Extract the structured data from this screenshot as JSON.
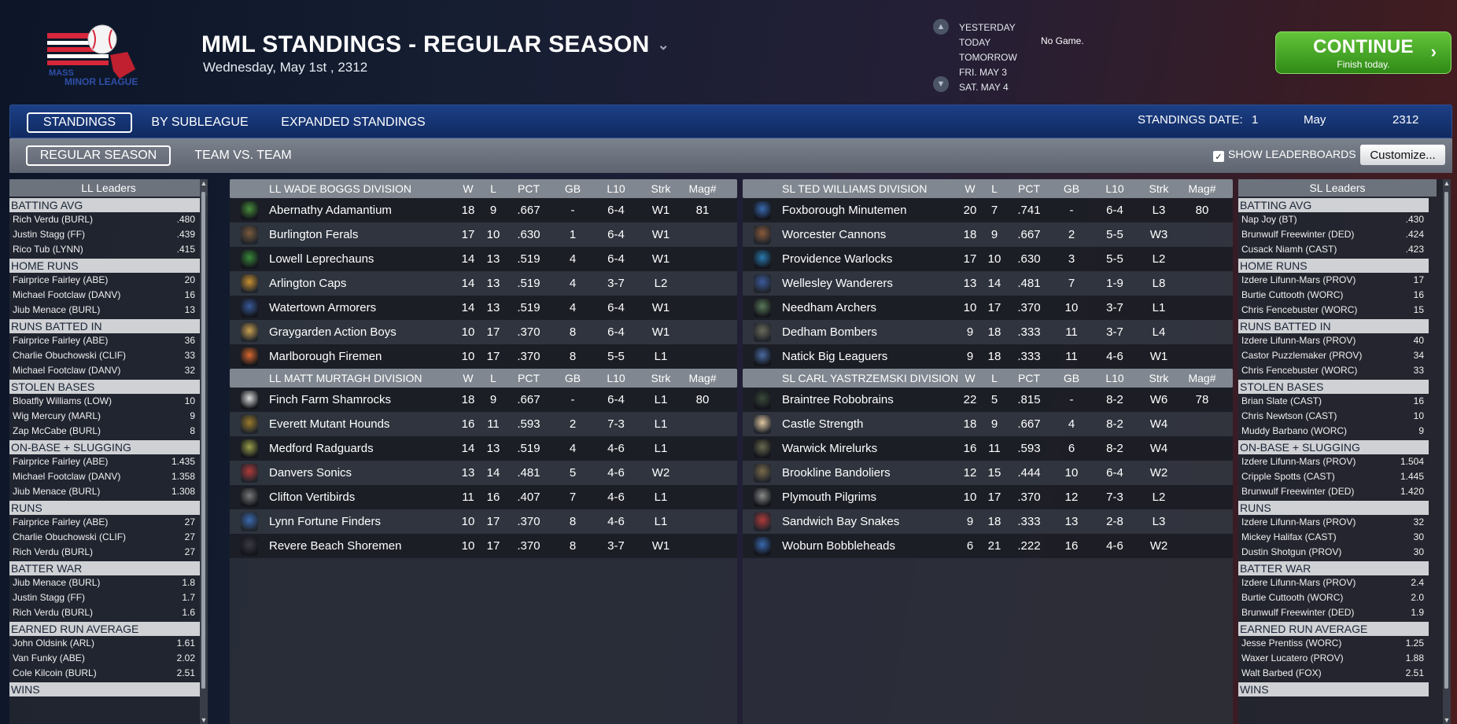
{
  "header": {
    "title": "MML STANDINGS - REGULAR SEASON",
    "date": "Wednesday, May 1st , 2312"
  },
  "daynav": {
    "days": [
      "YESTERDAY",
      "TODAY",
      "TOMORROW",
      "FRI. MAY 3",
      "SAT. MAY 4"
    ],
    "status": "No Game."
  },
  "continue": {
    "label": "CONTINUE",
    "sub": "Finish today."
  },
  "tabs": [
    "STANDINGS",
    "BY SUBLEAGUE",
    "EXPANDED STANDINGS"
  ],
  "subtabs": [
    "REGULAR SEASON",
    "TEAM VS. TEAM"
  ],
  "standings_date": {
    "label": "STANDINGS DATE:",
    "day": "1",
    "month": "May",
    "year": "2312"
  },
  "show_leaderboards": {
    "label": "SHOW LEADERBOARDS",
    "checked": true
  },
  "customize": "Customize...",
  "columns": [
    "W",
    "L",
    "PCT",
    "GB",
    "L10",
    "Strk",
    "Mag#"
  ],
  "ll_leaders": {
    "title": "LL Leaders",
    "sections": [
      {
        "name": "BATTING AVG",
        "rows": [
          [
            "Rich Verdu (BURL)",
            ".480"
          ],
          [
            "Justin Stagg (FF)",
            ".439"
          ],
          [
            "Rico Tub (LYNN)",
            ".415"
          ]
        ]
      },
      {
        "name": "HOME RUNS",
        "rows": [
          [
            "Fairprice Fairley (ABE)",
            "20"
          ],
          [
            "Michael Footclaw (DANV)",
            "16"
          ],
          [
            "Jiub Menace (BURL)",
            "13"
          ]
        ]
      },
      {
        "name": "RUNS BATTED IN",
        "rows": [
          [
            "Fairprice Fairley (ABE)",
            "36"
          ],
          [
            "Charlie Obuchowski (CLIF)",
            "33"
          ],
          [
            "Michael Footclaw (DANV)",
            "32"
          ]
        ]
      },
      {
        "name": "STOLEN BASES",
        "rows": [
          [
            "Bloatfly Williams (LOW)",
            "10"
          ],
          [
            "Wig Mercury (MARL)",
            "9"
          ],
          [
            "Zap McCabe (BURL)",
            "8"
          ]
        ]
      },
      {
        "name": "ON-BASE + SLUGGING",
        "rows": [
          [
            "Fairprice Fairley (ABE)",
            "1.435"
          ],
          [
            "Michael Footclaw (DANV)",
            "1.358"
          ],
          [
            "Jiub Menace (BURL)",
            "1.308"
          ]
        ]
      },
      {
        "name": "RUNS",
        "rows": [
          [
            "Fairprice Fairley (ABE)",
            "27"
          ],
          [
            "Charlie Obuchowski (CLIF)",
            "27"
          ],
          [
            "Rich Verdu (BURL)",
            "27"
          ]
        ]
      },
      {
        "name": "BATTER WAR",
        "rows": [
          [
            "Jiub Menace (BURL)",
            "1.8"
          ],
          [
            "Justin Stagg (FF)",
            "1.7"
          ],
          [
            "Rich Verdu (BURL)",
            "1.6"
          ]
        ]
      },
      {
        "name": "EARNED RUN AVERAGE",
        "rows": [
          [
            "John Oldsink (ARL)",
            "1.61"
          ],
          [
            "Van Funky (ABE)",
            "2.02"
          ],
          [
            "Cole Kilcoin (BURL)",
            "2.51"
          ]
        ]
      },
      {
        "name": "WINS",
        "rows": []
      }
    ]
  },
  "sl_leaders": {
    "title": "SL Leaders",
    "sections": [
      {
        "name": "BATTING AVG",
        "rows": [
          [
            "Nap Joy (BT)",
            ".430"
          ],
          [
            "Brunwulf Freewinter (DED)",
            ".424"
          ],
          [
            "Cusack Niamh (CAST)",
            ".423"
          ]
        ]
      },
      {
        "name": "HOME RUNS",
        "rows": [
          [
            "Izdere Lifunn-Mars (PROV)",
            "17"
          ],
          [
            "Burtie Cuttooth (WORC)",
            "16"
          ],
          [
            "Chris Fencebuster (WORC)",
            "15"
          ]
        ]
      },
      {
        "name": "RUNS BATTED IN",
        "rows": [
          [
            "Izdere Lifunn-Mars (PROV)",
            "40"
          ],
          [
            "Castor Puzzlemaker (PROV)",
            "34"
          ],
          [
            "Chris Fencebuster (WORC)",
            "33"
          ]
        ]
      },
      {
        "name": "STOLEN BASES",
        "rows": [
          [
            "Brian Slate (CAST)",
            "16"
          ],
          [
            "Chris Newtson (CAST)",
            "10"
          ],
          [
            "Muddy Barbano (WORC)",
            "9"
          ]
        ]
      },
      {
        "name": "ON-BASE + SLUGGING",
        "rows": [
          [
            "Izdere Lifunn-Mars (PROV)",
            "1.504"
          ],
          [
            "Cripple Spotts (CAST)",
            "1.445"
          ],
          [
            "Brunwulf Freewinter (DED)",
            "1.420"
          ]
        ]
      },
      {
        "name": "RUNS",
        "rows": [
          [
            "Izdere Lifunn-Mars (PROV)",
            "32"
          ],
          [
            "Mickey Halifax (CAST)",
            "30"
          ],
          [
            "Dustin Shotgun (PROV)",
            "30"
          ]
        ]
      },
      {
        "name": "BATTER WAR",
        "rows": [
          [
            "Izdere Lifunn-Mars (PROV)",
            "2.4"
          ],
          [
            "Burtie Cuttooth (WORC)",
            "2.0"
          ],
          [
            "Brunwulf Freewinter (DED)",
            "1.9"
          ]
        ]
      },
      {
        "name": "EARNED RUN AVERAGE",
        "rows": [
          [
            "Jesse Prentiss (WORC)",
            "1.25"
          ],
          [
            "Waxer Lucatero (PROV)",
            "1.88"
          ],
          [
            "Walt Barbed (FOX)",
            "2.51"
          ]
        ]
      },
      {
        "name": "WINS",
        "rows": []
      }
    ]
  },
  "divisions": [
    {
      "name": "LL WADE BOGGS DIVISION",
      "teams": [
        {
          "name": "Abernathy Adamantium",
          "w": "18",
          "l": "9",
          "pct": ".667",
          "gb": "-",
          "l10": "6-4",
          "strk": "W1",
          "mag": "81",
          "color": "#4a8f3c"
        },
        {
          "name": "Burlington Ferals",
          "w": "17",
          "l": "10",
          "pct": ".630",
          "gb": "1",
          "l10": "6-4",
          "strk": "W1",
          "mag": "",
          "color": "#7a5a3c"
        },
        {
          "name": "Lowell Leprechauns",
          "w": "14",
          "l": "13",
          "pct": ".519",
          "gb": "4",
          "l10": "6-4",
          "strk": "W1",
          "mag": "",
          "color": "#3a8a3a"
        },
        {
          "name": "Arlington Caps",
          "w": "14",
          "l": "13",
          "pct": ".519",
          "gb": "4",
          "l10": "3-7",
          "strk": "L2",
          "mag": "",
          "color": "#c89030"
        },
        {
          "name": "Watertown Armorers",
          "w": "14",
          "l": "13",
          "pct": ".519",
          "gb": "4",
          "l10": "6-4",
          "strk": "W1",
          "mag": "",
          "color": "#3a5a9a"
        },
        {
          "name": "Graygarden Action Boys",
          "w": "10",
          "l": "17",
          "pct": ".370",
          "gb": "8",
          "l10": "6-4",
          "strk": "W1",
          "mag": "",
          "color": "#c8a050"
        },
        {
          "name": "Marlborough Firemen",
          "w": "10",
          "l": "17",
          "pct": ".370",
          "gb": "8",
          "l10": "5-5",
          "strk": "L1",
          "mag": "",
          "color": "#d86a30"
        }
      ]
    },
    {
      "name": "LL MATT MURTAGH DIVISION",
      "teams": [
        {
          "name": "Finch Farm Shamrocks",
          "w": "18",
          "l": "9",
          "pct": ".667",
          "gb": "-",
          "l10": "6-4",
          "strk": "L1",
          "mag": "80",
          "color": "#dddddd"
        },
        {
          "name": "Everett Mutant Hounds",
          "w": "16",
          "l": "11",
          "pct": ".593",
          "gb": "2",
          "l10": "7-3",
          "strk": "L1",
          "mag": "",
          "color": "#9a7a2a"
        },
        {
          "name": "Medford Radguards",
          "w": "14",
          "l": "13",
          "pct": ".519",
          "gb": "4",
          "l10": "4-6",
          "strk": "L1",
          "mag": "",
          "color": "#9aa04a"
        },
        {
          "name": "Danvers Sonics",
          "w": "13",
          "l": "14",
          "pct": ".481",
          "gb": "5",
          "l10": "4-6",
          "strk": "W2",
          "mag": "",
          "color": "#b03a3a"
        },
        {
          "name": "Clifton Vertibirds",
          "w": "11",
          "l": "16",
          "pct": ".407",
          "gb": "7",
          "l10": "4-6",
          "strk": "L1",
          "mag": "",
          "color": "#7a7a7a"
        },
        {
          "name": "Lynn Fortune Finders",
          "w": "10",
          "l": "17",
          "pct": ".370",
          "gb": "8",
          "l10": "4-6",
          "strk": "L1",
          "mag": "",
          "color": "#3a6ab0"
        },
        {
          "name": "Revere Beach Shoremen",
          "w": "10",
          "l": "17",
          "pct": ".370",
          "gb": "8",
          "l10": "3-7",
          "strk": "W1",
          "mag": "",
          "color": "#3a3a44"
        }
      ]
    },
    {
      "name": "SL TED WILLIAMS DIVISION",
      "teams": [
        {
          "name": "Foxborough Minutemen",
          "w": "20",
          "l": "7",
          "pct": ".741",
          "gb": "-",
          "l10": "6-4",
          "strk": "L3",
          "mag": "80",
          "color": "#3a6ab0"
        },
        {
          "name": "Worcester Cannons",
          "w": "18",
          "l": "9",
          "pct": ".667",
          "gb": "2",
          "l10": "5-5",
          "strk": "W3",
          "mag": "",
          "color": "#8a5a3a"
        },
        {
          "name": "Providence Warlocks",
          "w": "17",
          "l": "10",
          "pct": ".630",
          "gb": "3",
          "l10": "5-5",
          "strk": "L2",
          "mag": "",
          "color": "#2a7ab0"
        },
        {
          "name": "Wellesley Wanderers",
          "w": "13",
          "l": "14",
          "pct": ".481",
          "gb": "7",
          "l10": "1-9",
          "strk": "L8",
          "mag": "",
          "color": "#3a5a9a"
        },
        {
          "name": "Needham Archers",
          "w": "10",
          "l": "17",
          "pct": ".370",
          "gb": "10",
          "l10": "3-7",
          "strk": "L1",
          "mag": "",
          "color": "#5a7a5a"
        },
        {
          "name": "Dedham Bombers",
          "w": "9",
          "l": "18",
          "pct": ".333",
          "gb": "11",
          "l10": "3-7",
          "strk": "L4",
          "mag": "",
          "color": "#6a6a5a"
        },
        {
          "name": "Natick Big Leaguers",
          "w": "9",
          "l": "18",
          "pct": ".333",
          "gb": "11",
          "l10": "4-6",
          "strk": "W1",
          "mag": "",
          "color": "#4a6aa0"
        }
      ]
    },
    {
      "name": "SL CARL YASTRZEMSKI DIVISION",
      "teams": [
        {
          "name": "Braintree Robobrains",
          "w": "22",
          "l": "5",
          "pct": ".815",
          "gb": "-",
          "l10": "8-2",
          "strk": "W6",
          "mag": "78",
          "color": "#3a4a3a"
        },
        {
          "name": "Castle Strength",
          "w": "18",
          "l": "9",
          "pct": ".667",
          "gb": "4",
          "l10": "8-2",
          "strk": "W4",
          "mag": "",
          "color": "#e0c8a0"
        },
        {
          "name": "Warwick Mirelurks",
          "w": "16",
          "l": "11",
          "pct": ".593",
          "gb": "6",
          "l10": "8-2",
          "strk": "W4",
          "mag": "",
          "color": "#6a6a50"
        },
        {
          "name": "Brookline Bandoliers",
          "w": "12",
          "l": "15",
          "pct": ".444",
          "gb": "10",
          "l10": "6-4",
          "strk": "W2",
          "mag": "",
          "color": "#7a6a4a"
        },
        {
          "name": "Plymouth Pilgrims",
          "w": "10",
          "l": "17",
          "pct": ".370",
          "gb": "12",
          "l10": "7-3",
          "strk": "L2",
          "mag": "",
          "color": "#8a8a8a"
        },
        {
          "name": "Sandwich Bay Snakes",
          "w": "9",
          "l": "18",
          "pct": ".333",
          "gb": "13",
          "l10": "2-8",
          "strk": "L3",
          "mag": "",
          "color": "#b03a3a"
        },
        {
          "name": "Woburn Bobbleheads",
          "w": "6",
          "l": "21",
          "pct": ".222",
          "gb": "16",
          "l10": "4-6",
          "strk": "W2",
          "mag": "",
          "color": "#3a6ab0"
        }
      ]
    }
  ]
}
